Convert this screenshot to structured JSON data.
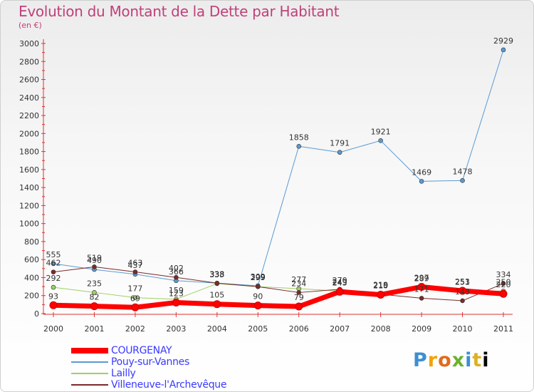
{
  "title": "Evolution du Montant de la Dette par Habitant",
  "subtitle": "(en €)",
  "logo": "Proxiti",
  "chart_data": {
    "type": "line",
    "title": "Evolution du Montant de la Dette par Habitant",
    "subtitle": "(en €)",
    "x": [
      "2000",
      "2001",
      "2002",
      "2003",
      "2004",
      "2005",
      "2006",
      "2007",
      "2008",
      "2009",
      "2010",
      "2011"
    ],
    "ylim": [
      0,
      3000
    ],
    "yticks": [
      0,
      200,
      400,
      600,
      800,
      1000,
      1200,
      1400,
      1600,
      1800,
      2000,
      2200,
      2400,
      2600,
      2800,
      3000
    ],
    "grid": false,
    "legend_position": "bottom-left",
    "series": [
      {
        "name": "Pouy-sur-Vannes",
        "color": "#5a9ad2",
        "width": 1,
        "values": [
          555,
          490,
          437,
          366,
          338,
          309,
          1858,
          1791,
          1921,
          1469,
          1478,
          2929
        ]
      },
      {
        "name": "Lailly",
        "color": "#9ed060",
        "width": 1,
        "values": [
          292,
          235,
          177,
          159,
          333,
          299,
          277,
          249,
          219,
          289,
          251,
          250
        ]
      },
      {
        "name": "Villeneuve-l'Archevêque",
        "color": "#7a2a2a",
        "width": 1,
        "values": [
          462,
          519,
          463,
          402,
          338,
          299,
          234,
          270,
          215,
          171,
          143,
          334
        ]
      },
      {
        "name": "COURGENAY",
        "color": "#ff0000",
        "width": 7,
        "values": [
          93,
          82,
          69,
          123,
          105,
          90,
          79,
          243,
          210,
          297,
          253,
          220
        ]
      }
    ]
  }
}
